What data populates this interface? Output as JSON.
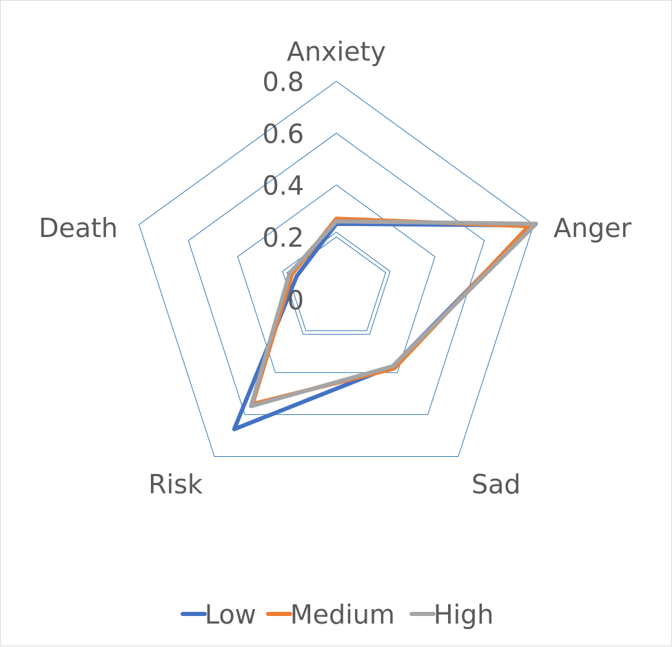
{
  "chart_data": {
    "type": "radar",
    "axes": [
      "Anxiety",
      "Anger",
      "Sad",
      "Risk",
      "Death"
    ],
    "ticks": [
      "0",
      "0.2",
      "0.4",
      "0.6",
      "0.8"
    ],
    "tick_values": [
      0,
      0.2,
      0.4,
      0.6,
      0.8
    ],
    "range": [
      0,
      0.8
    ],
    "series": [
      {
        "name": "Low",
        "color": "#4472C4",
        "values": [
          0.25,
          0.79,
          0.37,
          0.67,
          0.16
        ]
      },
      {
        "name": "Medium",
        "color": "#ED7D31",
        "values": [
          0.27,
          0.78,
          0.38,
          0.55,
          0.18
        ]
      },
      {
        "name": "High",
        "color": "#A5A5A5",
        "values": [
          0.26,
          0.81,
          0.37,
          0.56,
          0.19
        ]
      }
    ],
    "grid_color": "#2E75B6",
    "legend_position": "bottom"
  }
}
